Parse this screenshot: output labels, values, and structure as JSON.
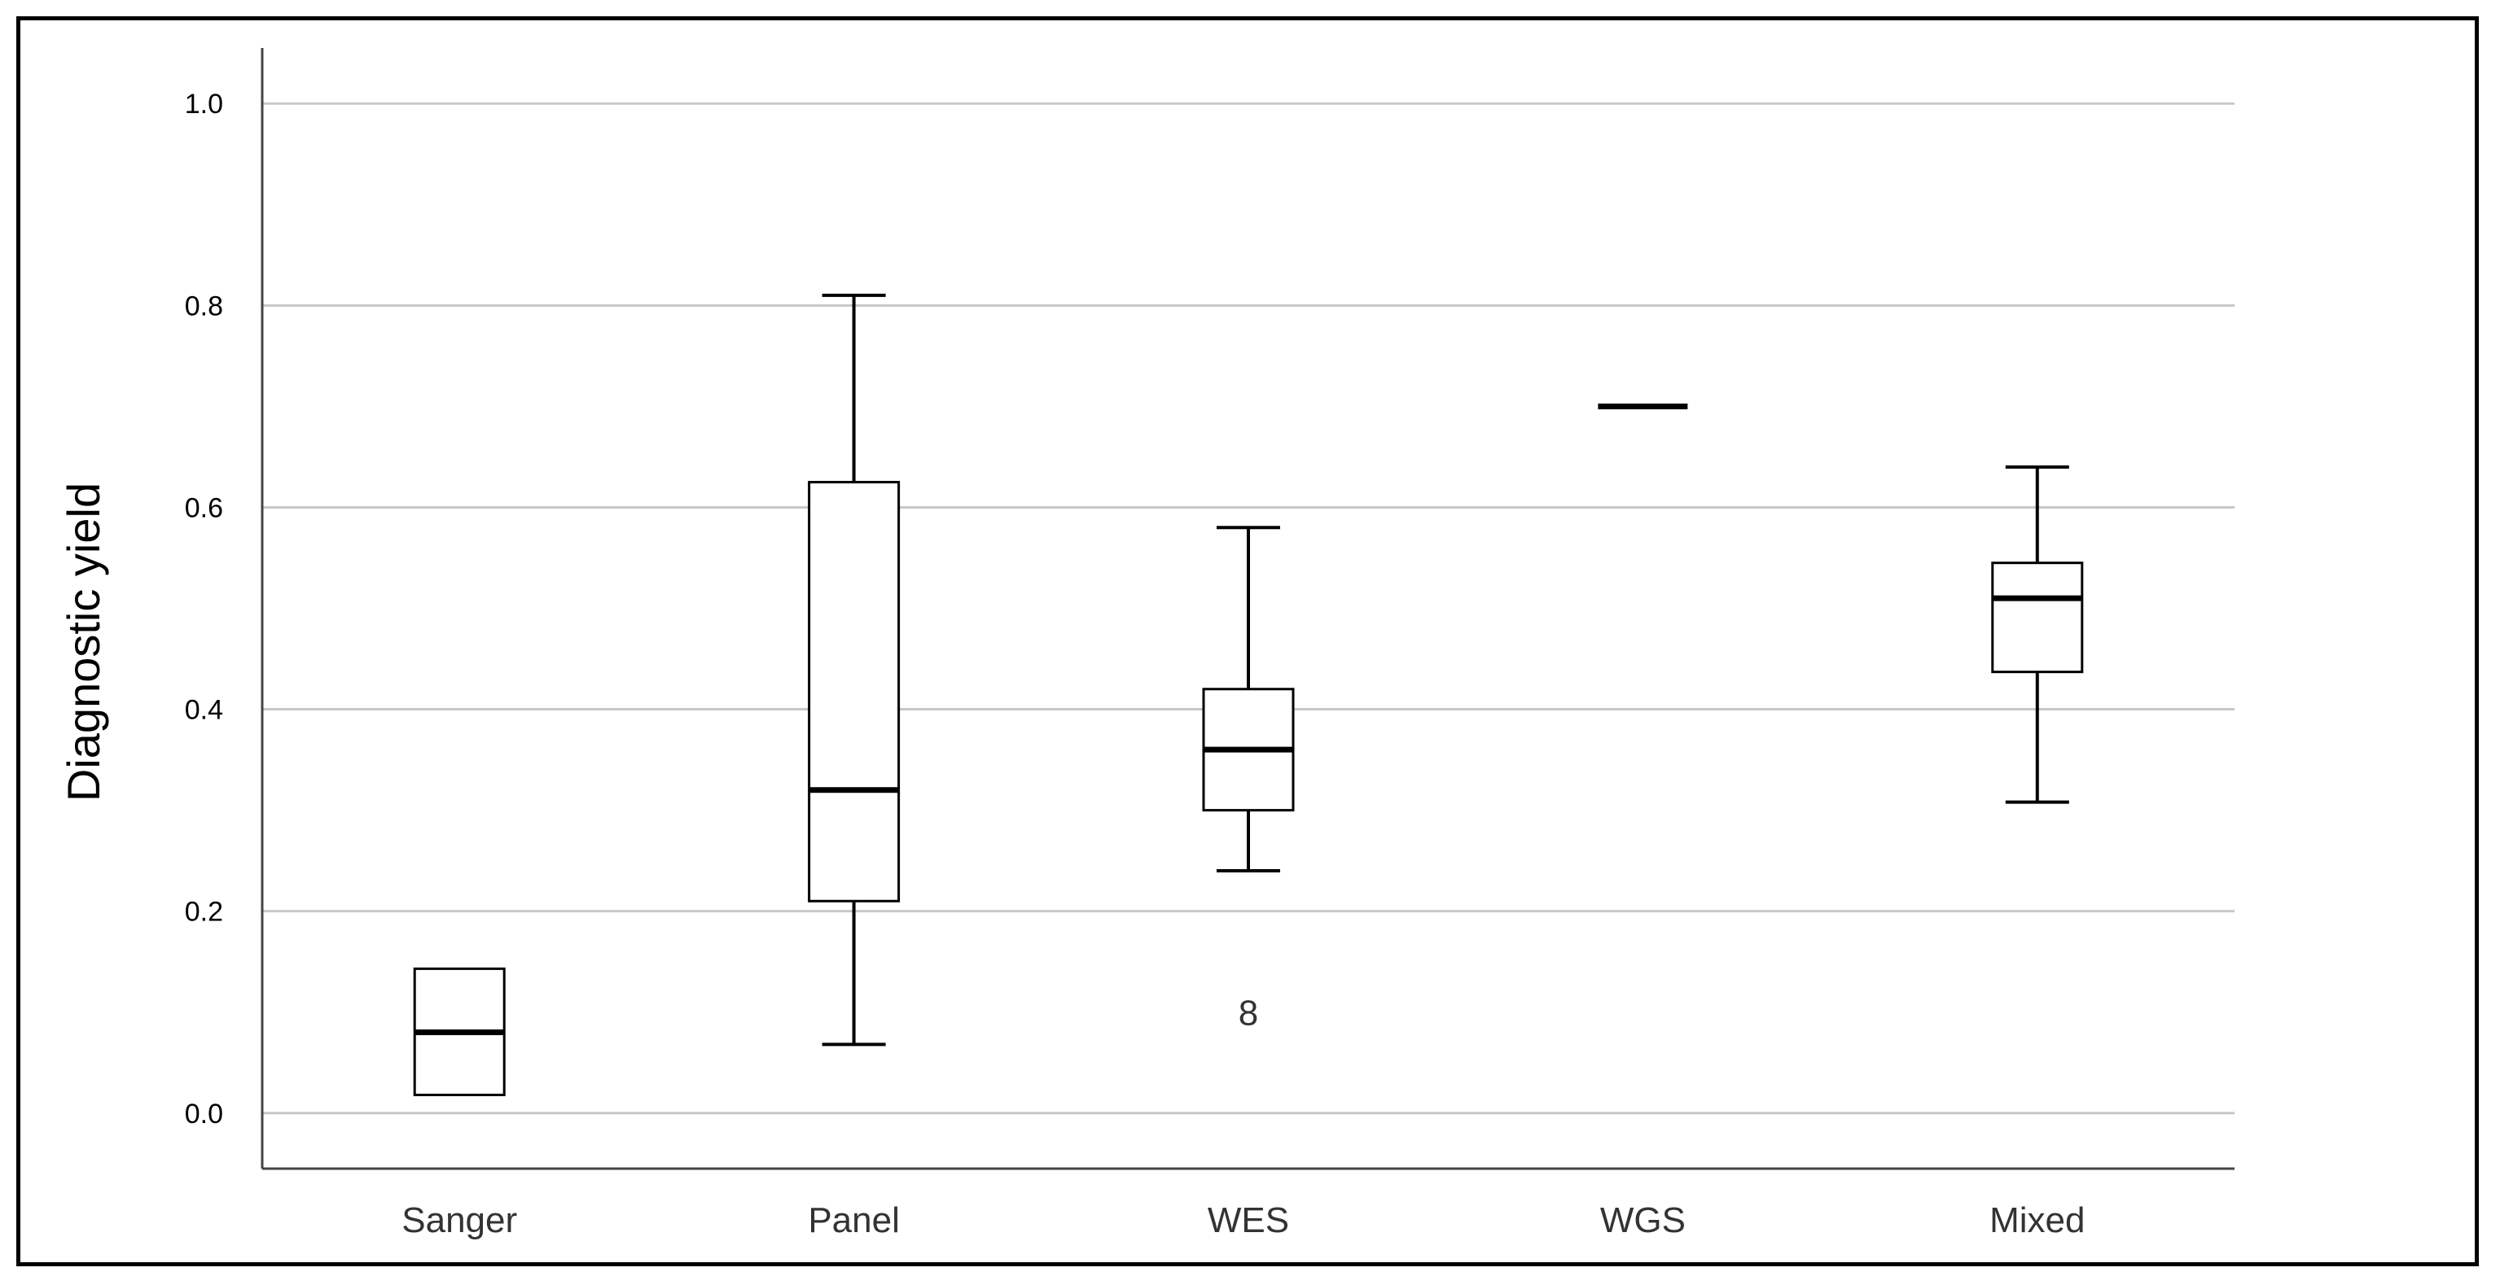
{
  "chart_data": {
    "type": "box",
    "title": "",
    "xlabel": "",
    "ylabel": "Diagnostic yield",
    "ylim": [
      -0.055,
      1.055
    ],
    "yticks": [
      "0.0",
      "0.2",
      "0.4",
      "0.6",
      "0.8",
      "1.0"
    ],
    "grid": true,
    "categories": [
      "Sanger",
      "Panel",
      "WES",
      "WGS",
      "Mixed"
    ],
    "boxes": [
      {
        "category": "Sanger",
        "min": 0.018,
        "q1": 0.018,
        "median": 0.08,
        "q3": 0.143,
        "max": 0.143
      },
      {
        "category": "Panel",
        "min": 0.068,
        "q1": 0.21,
        "median": 0.32,
        "q3": 0.625,
        "max": 0.81
      },
      {
        "category": "WES",
        "min": 0.24,
        "q1": 0.3,
        "median": 0.36,
        "q3": 0.42,
        "max": 0.58
      },
      {
        "category": "WGS",
        "min": 0.7,
        "q1": 0.7,
        "median": 0.7,
        "q3": 0.7,
        "max": 0.7
      },
      {
        "category": "Mixed",
        "min": 0.308,
        "q1": 0.437,
        "median": 0.51,
        "q3": 0.545,
        "max": 0.64
      }
    ],
    "outliers": [
      {
        "category": "WES",
        "value": 0.1,
        "label": "8"
      }
    ],
    "colors": {
      "box_fill": "#ffffff",
      "box_stroke": "#000000",
      "grid": "#c8c8c8",
      "axis": "#444444"
    }
  }
}
